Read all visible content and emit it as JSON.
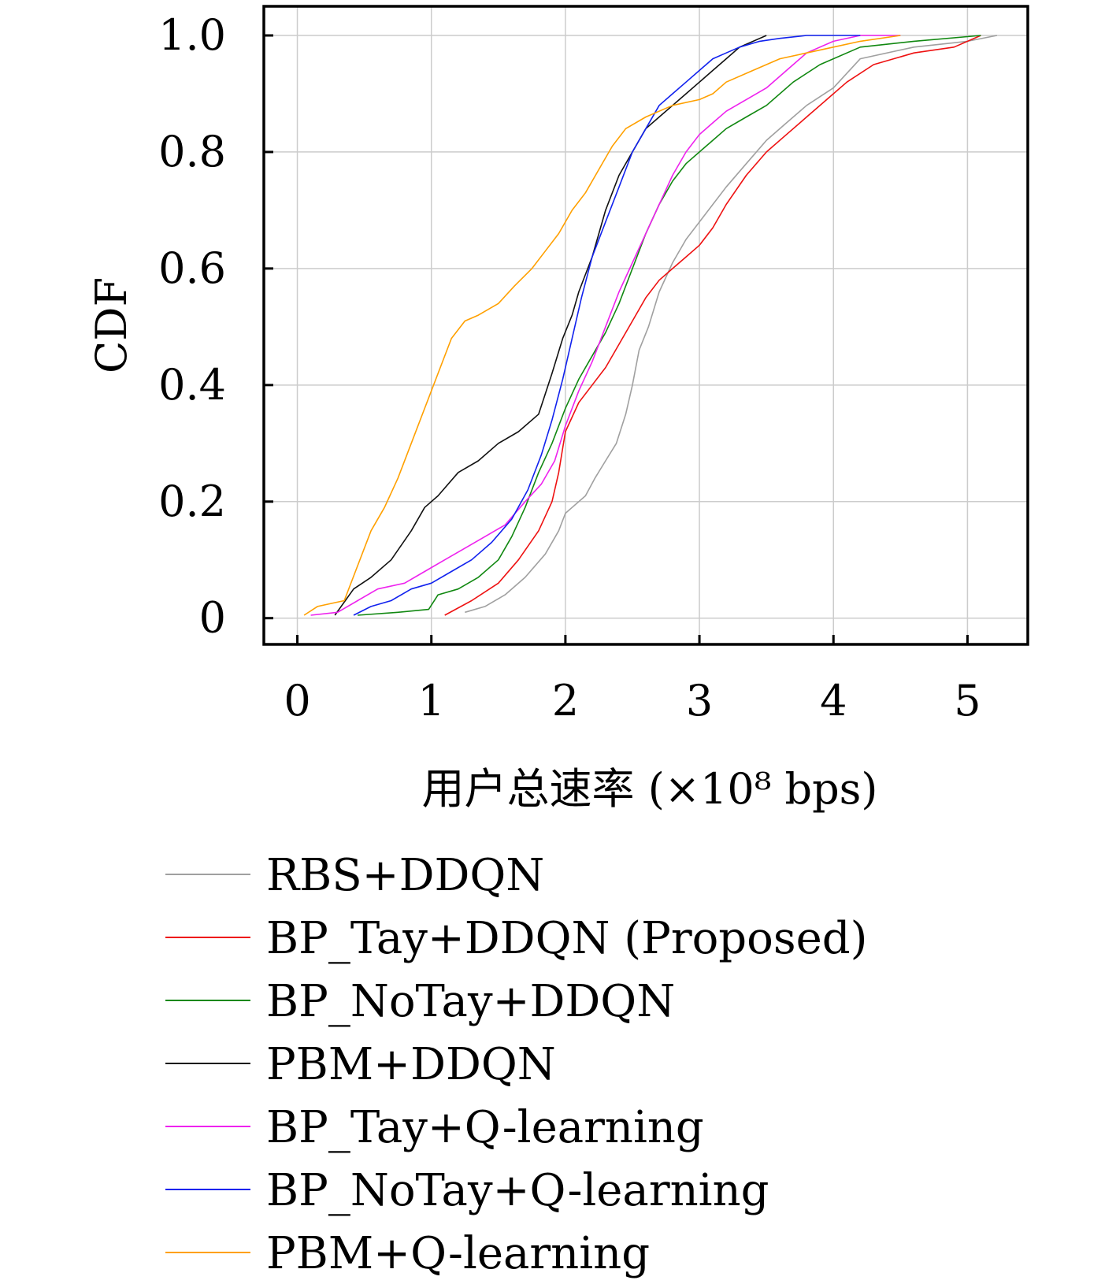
{
  "chart_data": {
    "type": "line",
    "title": "",
    "xlabel": "用户总速率 (×10⁸ bps)",
    "ylabel": "CDF",
    "xlim": [
      -0.25,
      5.45
    ],
    "ylim": [
      -0.045,
      1.05
    ],
    "xticks": [
      0,
      1,
      2,
      3,
      4,
      5
    ],
    "xtick_labels": [
      "0",
      "1",
      "2",
      "3",
      "4",
      "5"
    ],
    "yticks": [
      0,
      0.2,
      0.4,
      0.6,
      0.8,
      1.0
    ],
    "ytick_labels": [
      "0",
      "0.2",
      "0.4",
      "0.6",
      "0.8",
      "1.0"
    ],
    "grid": true,
    "legend_position": "below",
    "series": [
      {
        "name": "RBS+DDQN",
        "color": "#a0a0a0",
        "x": [
          1.25,
          1.4,
          1.55,
          1.7,
          1.85,
          1.95,
          2.0,
          2.05,
          2.15,
          2.22,
          2.3,
          2.38,
          2.45,
          2.5,
          2.55,
          2.62,
          2.7,
          2.8,
          2.9,
          3.0,
          3.1,
          3.2,
          3.35,
          3.5,
          3.65,
          3.8,
          4.0,
          4.2,
          4.6,
          5.0,
          5.22
        ],
        "y": [
          0.01,
          0.02,
          0.04,
          0.07,
          0.11,
          0.15,
          0.18,
          0.19,
          0.21,
          0.24,
          0.27,
          0.3,
          0.35,
          0.4,
          0.46,
          0.5,
          0.56,
          0.61,
          0.65,
          0.68,
          0.71,
          0.74,
          0.78,
          0.82,
          0.85,
          0.88,
          0.91,
          0.96,
          0.98,
          0.99,
          1.0
        ]
      },
      {
        "name": "BP_Tay+DDQN (Proposed)",
        "color": "#ee1111",
        "x": [
          1.1,
          1.3,
          1.5,
          1.65,
          1.8,
          1.9,
          1.95,
          2.0,
          2.1,
          2.2,
          2.3,
          2.4,
          2.5,
          2.6,
          2.7,
          2.8,
          2.9,
          3.0,
          3.1,
          3.2,
          3.35,
          3.5,
          3.65,
          3.8,
          3.95,
          4.1,
          4.3,
          4.6,
          4.9,
          5.1
        ],
        "y": [
          0.005,
          0.03,
          0.06,
          0.1,
          0.15,
          0.2,
          0.25,
          0.32,
          0.37,
          0.4,
          0.43,
          0.47,
          0.51,
          0.55,
          0.58,
          0.6,
          0.62,
          0.64,
          0.67,
          0.71,
          0.76,
          0.8,
          0.83,
          0.86,
          0.89,
          0.92,
          0.95,
          0.97,
          0.98,
          1.0
        ]
      },
      {
        "name": "BP_NoTay+DDQN",
        "color": "#118811",
        "x": [
          0.45,
          0.75,
          0.98,
          1.05,
          1.2,
          1.35,
          1.5,
          1.6,
          1.7,
          1.8,
          1.9,
          2.0,
          2.1,
          2.2,
          2.3,
          2.4,
          2.5,
          2.6,
          2.7,
          2.8,
          2.9,
          3.0,
          3.1,
          3.2,
          3.35,
          3.5,
          3.7,
          3.9,
          4.2,
          4.6,
          5.1
        ],
        "y": [
          0.005,
          0.01,
          0.015,
          0.04,
          0.05,
          0.07,
          0.1,
          0.14,
          0.19,
          0.25,
          0.3,
          0.36,
          0.41,
          0.45,
          0.49,
          0.54,
          0.6,
          0.66,
          0.71,
          0.75,
          0.78,
          0.8,
          0.82,
          0.84,
          0.86,
          0.88,
          0.92,
          0.95,
          0.98,
          0.99,
          1.0
        ]
      },
      {
        "name": "PBM+DDQN",
        "color": "#111111",
        "x": [
          0.28,
          0.42,
          0.55,
          0.7,
          0.85,
          0.95,
          1.05,
          1.2,
          1.35,
          1.5,
          1.65,
          1.8,
          1.9,
          1.98,
          2.05,
          2.1,
          2.2,
          2.3,
          2.4,
          2.5,
          2.6,
          2.7,
          2.8,
          2.9,
          3.0,
          3.1,
          3.2,
          3.3,
          3.5
        ],
        "y": [
          0.005,
          0.05,
          0.07,
          0.1,
          0.15,
          0.19,
          0.21,
          0.25,
          0.27,
          0.3,
          0.32,
          0.35,
          0.42,
          0.48,
          0.52,
          0.56,
          0.62,
          0.7,
          0.76,
          0.8,
          0.84,
          0.86,
          0.88,
          0.9,
          0.92,
          0.94,
          0.96,
          0.98,
          1.0
        ]
      },
      {
        "name": "BP_Tay+Q-learning",
        "color": "#ee22ee",
        "x": [
          0.1,
          0.3,
          0.45,
          0.6,
          0.8,
          0.95,
          1.1,
          1.25,
          1.4,
          1.55,
          1.7,
          1.82,
          1.92,
          2.0,
          2.1,
          2.2,
          2.3,
          2.4,
          2.5,
          2.6,
          2.7,
          2.8,
          2.9,
          3.0,
          3.1,
          3.2,
          3.35,
          3.5,
          3.65,
          3.8,
          4.0,
          4.2,
          4.5
        ],
        "y": [
          0.005,
          0.01,
          0.03,
          0.05,
          0.06,
          0.08,
          0.1,
          0.12,
          0.14,
          0.16,
          0.2,
          0.23,
          0.27,
          0.33,
          0.39,
          0.44,
          0.5,
          0.56,
          0.61,
          0.66,
          0.71,
          0.76,
          0.8,
          0.83,
          0.85,
          0.87,
          0.89,
          0.91,
          0.94,
          0.97,
          0.99,
          1.0,
          1.0
        ]
      },
      {
        "name": "BP_NoTay+Q-learning",
        "color": "#1122ee",
        "x": [
          0.42,
          0.55,
          0.7,
          0.85,
          1.0,
          1.15,
          1.3,
          1.45,
          1.6,
          1.72,
          1.82,
          1.9,
          1.98,
          2.05,
          2.12,
          2.2,
          2.3,
          2.4,
          2.5,
          2.6,
          2.7,
          2.8,
          2.9,
          3.0,
          3.1,
          3.2,
          3.3,
          3.45,
          3.6,
          3.8,
          4.2
        ],
        "y": [
          0.005,
          0.02,
          0.03,
          0.05,
          0.06,
          0.08,
          0.1,
          0.13,
          0.17,
          0.22,
          0.28,
          0.34,
          0.41,
          0.48,
          0.55,
          0.62,
          0.68,
          0.74,
          0.8,
          0.84,
          0.88,
          0.9,
          0.92,
          0.94,
          0.96,
          0.97,
          0.98,
          0.99,
          0.995,
          1.0,
          1.0
        ]
      },
      {
        "name": "PBM+Q-learning",
        "color": "#ffa000",
        "x": [
          0.05,
          0.15,
          0.35,
          0.45,
          0.55,
          0.65,
          0.75,
          0.85,
          0.95,
          1.05,
          1.15,
          1.25,
          1.35,
          1.5,
          1.62,
          1.75,
          1.85,
          1.95,
          2.05,
          2.15,
          2.25,
          2.35,
          2.45,
          2.6,
          2.8,
          3.0,
          3.1,
          3.2,
          3.4,
          3.6,
          3.8,
          4.0,
          4.2,
          4.5
        ],
        "y": [
          0.005,
          0.02,
          0.03,
          0.09,
          0.15,
          0.19,
          0.24,
          0.3,
          0.36,
          0.42,
          0.48,
          0.51,
          0.52,
          0.54,
          0.57,
          0.6,
          0.63,
          0.66,
          0.7,
          0.73,
          0.77,
          0.81,
          0.84,
          0.86,
          0.88,
          0.89,
          0.9,
          0.92,
          0.94,
          0.96,
          0.97,
          0.98,
          0.99,
          1.0
        ]
      }
    ]
  }
}
